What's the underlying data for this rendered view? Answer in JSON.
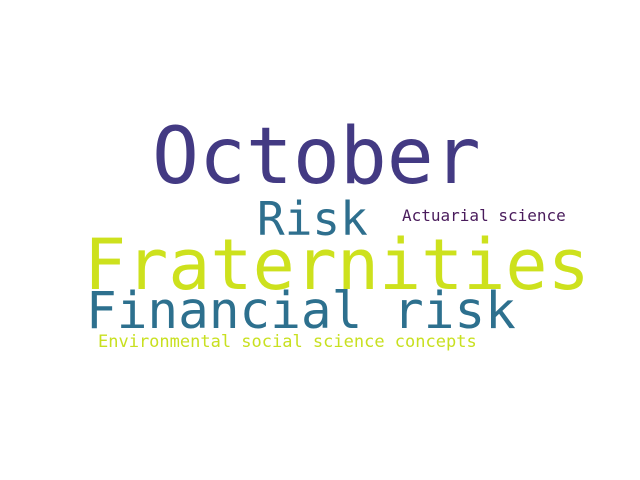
{
  "word_cloud": {
    "words": [
      {
        "text": "October",
        "color": "#433a83"
      },
      {
        "text": "Risk",
        "color": "#2e6f8e"
      },
      {
        "text": "Actuarial science",
        "color": "#4a1c5c"
      },
      {
        "text": "Fraternities",
        "color": "#cde11d"
      },
      {
        "text": "Financial risk",
        "color": "#2d708e"
      },
      {
        "text": "Environmental social science concepts",
        "color": "#c8e020"
      }
    ]
  }
}
